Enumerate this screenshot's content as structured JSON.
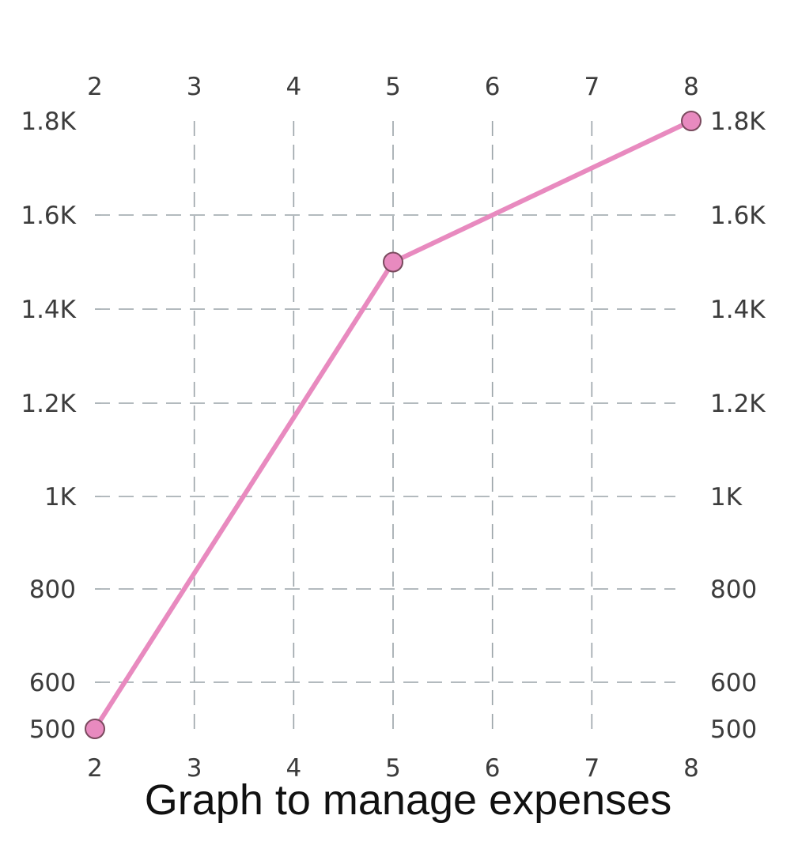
{
  "chart_data": {
    "type": "line",
    "title": "",
    "caption": "Graph to manage expenses",
    "xlabel": "",
    "ylabel": "",
    "x_ticks": [
      "2",
      "3",
      "4",
      "5",
      "6",
      "7",
      "8"
    ],
    "x_tick_values": [
      2,
      3,
      4,
      5,
      6,
      7,
      8
    ],
    "y_tick_labels": [
      "500",
      "600",
      "800",
      "1K",
      "1.2K",
      "1.4K",
      "1.6K",
      "1.8K"
    ],
    "y_tick_values": [
      500,
      600,
      800,
      1000,
      1200,
      1400,
      1600,
      1800
    ],
    "xlim": [
      2,
      8
    ],
    "ylim": [
      500,
      1800
    ],
    "grid": true,
    "axes_mirrored": true,
    "series": [
      {
        "color": "#e88abf",
        "marker_fill": "#e88abf",
        "marker_stroke": "#7a4a5e",
        "points": [
          {
            "x": 2,
            "y": 500
          },
          {
            "x": 5,
            "y": 1500
          },
          {
            "x": 8,
            "y": 1800
          }
        ]
      }
    ],
    "colors": {
      "grid": "#9aa3a8",
      "tick_text": "#3c3c3c",
      "caption_text": "#111111"
    }
  }
}
